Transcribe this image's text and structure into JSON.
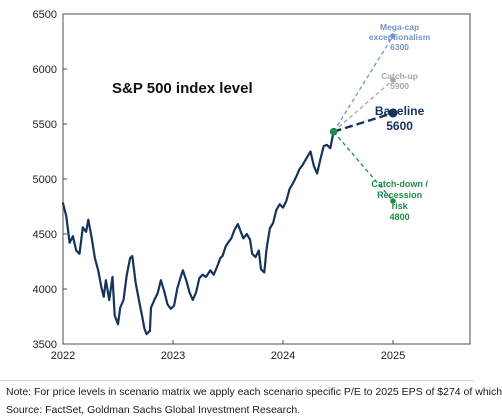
{
  "chart_data": {
    "type": "line",
    "title": "S&P 500 index level",
    "xlabel": "",
    "ylabel": "",
    "xlim": [
      2022.0,
      2025.7
    ],
    "ylim": [
      3500,
      6500
    ],
    "x_ticks": [
      "2022",
      "2023",
      "2024",
      "2025"
    ],
    "y_ticks": [
      "3500",
      "4000",
      "4500",
      "5000",
      "5500",
      "6000",
      "6500"
    ],
    "grid": false,
    "series": [
      {
        "color": "#17335c",
        "points": [
          [
            2022.0,
            4780
          ],
          [
            2022.03,
            4660
          ],
          [
            2022.06,
            4420
          ],
          [
            2022.09,
            4480
          ],
          [
            2022.12,
            4350
          ],
          [
            2022.15,
            4320
          ],
          [
            2022.18,
            4560
          ],
          [
            2022.21,
            4520
          ],
          [
            2022.23,
            4630
          ],
          [
            2022.26,
            4470
          ],
          [
            2022.29,
            4280
          ],
          [
            2022.32,
            4170
          ],
          [
            2022.35,
            4010
          ],
          [
            2022.37,
            3930
          ],
          [
            2022.39,
            4080
          ],
          [
            2022.42,
            3900
          ],
          [
            2022.45,
            4110
          ],
          [
            2022.47,
            3760
          ],
          [
            2022.5,
            3680
          ],
          [
            2022.52,
            3830
          ],
          [
            2022.55,
            3900
          ],
          [
            2022.58,
            4130
          ],
          [
            2022.61,
            4280
          ],
          [
            2022.63,
            4300
          ],
          [
            2022.66,
            4060
          ],
          [
            2022.69,
            3900
          ],
          [
            2022.72,
            3750
          ],
          [
            2022.74,
            3640
          ],
          [
            2022.76,
            3590
          ],
          [
            2022.79,
            3620
          ],
          [
            2022.8,
            3830
          ],
          [
            2022.83,
            3900
          ],
          [
            2022.86,
            3960
          ],
          [
            2022.89,
            4080
          ],
          [
            2022.92,
            3980
          ],
          [
            2022.95,
            3860
          ],
          [
            2022.98,
            3820
          ],
          [
            2023.01,
            3850
          ],
          [
            2023.04,
            4010
          ],
          [
            2023.07,
            4110
          ],
          [
            2023.09,
            4170
          ],
          [
            2023.12,
            4080
          ],
          [
            2023.15,
            3970
          ],
          [
            2023.18,
            3900
          ],
          [
            2023.21,
            3970
          ],
          [
            2023.24,
            4100
          ],
          [
            2023.27,
            4130
          ],
          [
            2023.3,
            4110
          ],
          [
            2023.34,
            4170
          ],
          [
            2023.37,
            4130
          ],
          [
            2023.4,
            4200
          ],
          [
            2023.43,
            4280
          ],
          [
            2023.45,
            4300
          ],
          [
            2023.48,
            4390
          ],
          [
            2023.5,
            4420
          ],
          [
            2023.53,
            4460
          ],
          [
            2023.56,
            4540
          ],
          [
            2023.59,
            4590
          ],
          [
            2023.62,
            4510
          ],
          [
            2023.64,
            4460
          ],
          [
            2023.67,
            4500
          ],
          [
            2023.7,
            4450
          ],
          [
            2023.72,
            4320
          ],
          [
            2023.75,
            4290
          ],
          [
            2023.78,
            4350
          ],
          [
            2023.8,
            4180
          ],
          [
            2023.83,
            4150
          ],
          [
            2023.85,
            4360
          ],
          [
            2023.88,
            4550
          ],
          [
            2023.91,
            4600
          ],
          [
            2023.94,
            4720
          ],
          [
            2023.97,
            4770
          ],
          [
            2024.0,
            4740
          ],
          [
            2024.03,
            4800
          ],
          [
            2024.06,
            4910
          ],
          [
            2024.09,
            4960
          ],
          [
            2024.12,
            5020
          ],
          [
            2024.15,
            5090
          ],
          [
            2024.18,
            5130
          ],
          [
            2024.22,
            5200
          ],
          [
            2024.25,
            5250
          ],
          [
            2024.28,
            5120
          ],
          [
            2024.31,
            5050
          ],
          [
            2024.34,
            5180
          ],
          [
            2024.37,
            5300
          ],
          [
            2024.4,
            5310
          ],
          [
            2024.43,
            5280
          ],
          [
            2024.46,
            5430
          ]
        ]
      }
    ],
    "scenarios": {
      "start": [
        2024.46,
        5430
      ],
      "items": [
        {
          "name": "Mega-cap exceptionalism",
          "value": "6300",
          "x": 2025.0,
          "y": 6300,
          "color": "#7096c8",
          "bold": false,
          "dash": "4,3",
          "marker": "dot"
        },
        {
          "name": "Catch-up",
          "value": "5900",
          "x": 2025.0,
          "y": 5900,
          "color": "#a6a6a6",
          "bold": false,
          "dash": "4,3",
          "marker": "dot"
        },
        {
          "name": "Baseline",
          "value": "5600",
          "x": 2025.0,
          "y": 5600,
          "color": "#17335c",
          "bold": true,
          "dash": "8,4",
          "marker": "dot"
        },
        {
          "name": "Catch-down / Recession risk",
          "value": "4800",
          "x": 2025.0,
          "y": 4800,
          "color": "#1f8a48",
          "bold": false,
          "dash": "4,3",
          "marker": "dot"
        }
      ]
    },
    "label_lines": {
      "mega": [
        "Mega-cap",
        "exceptionalism",
        "6300"
      ],
      "catchup": [
        "Catch-up",
        "5900"
      ],
      "baseline": [
        "Baseline",
        "5600"
      ],
      "catchdown": [
        "Catch-down /",
        "Recession",
        "risk",
        "4800"
      ]
    }
  },
  "footer": {
    "note": "Note: For price levels in scenario matrix we apply each scenario specific P/E to 2025 EPS of $274 of which",
    "source": "Source: FactSet, Goldman Sachs Global Investment Research."
  }
}
